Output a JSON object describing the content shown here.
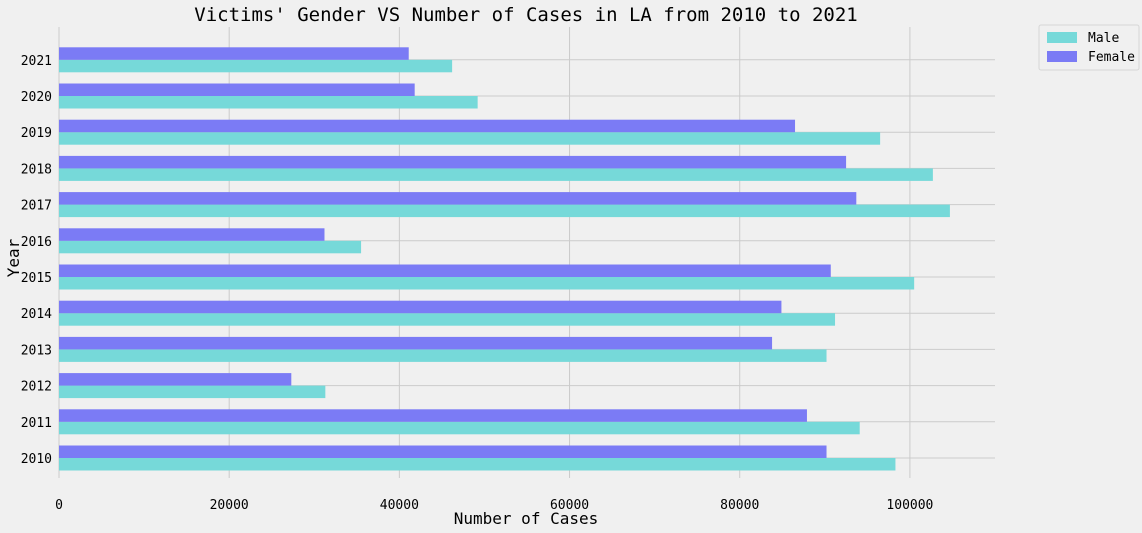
{
  "chart_data": {
    "type": "bar",
    "orientation": "horizontal",
    "title": "Victims' Gender VS Number of Cases in LA from 2010 to 2021",
    "xlabel": "Number of Cases",
    "ylabel": "Year",
    "categories": [
      "2010",
      "2011",
      "2012",
      "2013",
      "2014",
      "2015",
      "2016",
      "2017",
      "2018",
      "2019",
      "2020",
      "2021"
    ],
    "series": [
      {
        "name": "Male",
        "color": "#76d9d9",
        "values": [
          98300,
          94100,
          31300,
          90200,
          91200,
          100500,
          35500,
          104700,
          102700,
          96500,
          49200,
          46200
        ]
      },
      {
        "name": "Female",
        "color": "#7b7bf5",
        "values": [
          90200,
          87900,
          27300,
          83800,
          84900,
          90700,
          31200,
          93700,
          92500,
          86500,
          41800,
          41100
        ]
      }
    ],
    "xlim": [
      0,
      110000
    ],
    "xticks": [
      "0",
      "20000",
      "40000",
      "60000",
      "80000",
      "100000"
    ],
    "xtick_values": [
      0,
      20000,
      40000,
      60000,
      80000,
      100000
    ],
    "grid": true,
    "legend_position": "upper-right-outside"
  }
}
